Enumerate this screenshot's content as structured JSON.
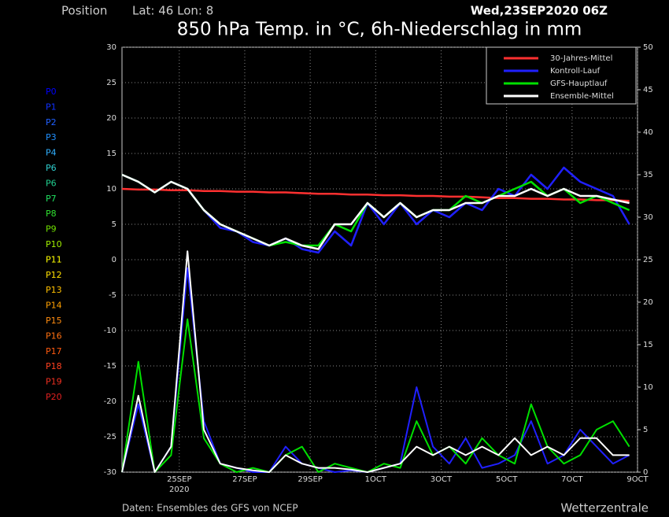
{
  "chart_data": {
    "type": "line",
    "position_label": "Position",
    "position": "Lat: 46 Lon: 8",
    "run": "Wed,23SEP2020 06Z",
    "title": "850 hPa Temp. in °C, 6h-Niederschlag in mm",
    "source": "Daten: Ensembles des GFS von NCEP",
    "brand": "Wetterzentrale",
    "x_year": "2020",
    "grid": true,
    "legend": "top-right",
    "x": [
      0,
      2,
      4,
      6,
      8,
      10,
      12,
      14,
      16,
      18,
      20,
      22,
      24,
      26,
      28,
      30,
      32,
      34,
      36,
      38,
      40,
      42,
      44,
      46,
      48,
      50,
      52,
      54,
      56,
      58,
      60,
      62
    ],
    "xlim": [
      0,
      63
    ],
    "xticks": [
      {
        "value": 7,
        "label": "25SEP"
      },
      {
        "value": 15,
        "label": "27SEP"
      },
      {
        "value": 23,
        "label": "29SEP"
      },
      {
        "value": 31,
        "label": "1OCT"
      },
      {
        "value": 39,
        "label": "3OCT"
      },
      {
        "value": 47,
        "label": "5OCT"
      },
      {
        "value": 55,
        "label": "7OCT"
      },
      {
        "value": 63,
        "label": "9OCT"
      }
    ],
    "ylim": [
      -30,
      30
    ],
    "yticks": [
      -30,
      -25,
      -20,
      -15,
      -10,
      -5,
      0,
      5,
      10,
      15,
      20,
      25,
      30
    ],
    "y2lim": [
      0,
      50
    ],
    "y2ticks": [
      0,
      5,
      10,
      15,
      20,
      25,
      30,
      35,
      40,
      45,
      50
    ],
    "series": [
      {
        "name": "30-Jahres-Mittel",
        "color": "#ff3030",
        "values": [
          10,
          9.9,
          9.9,
          9.8,
          9.8,
          9.7,
          9.7,
          9.6,
          9.6,
          9.5,
          9.5,
          9.4,
          9.3,
          9.3,
          9.2,
          9.2,
          9.1,
          9.1,
          9,
          9,
          8.9,
          8.9,
          8.8,
          8.7,
          8.7,
          8.6,
          8.6,
          8.5,
          8.5,
          8.4,
          8.4,
          8.3
        ]
      },
      {
        "name": "Kontroll-Lauf",
        "color": "#2020ff",
        "values": [
          12,
          11,
          9.5,
          11,
          10,
          7,
          4.5,
          4,
          2.5,
          2,
          3,
          1.5,
          1,
          4,
          2,
          8,
          5,
          8,
          5,
          7,
          6,
          8,
          7,
          10,
          9,
          12,
          10,
          13,
          11,
          10,
          9,
          5
        ],
        "precip": [
          0,
          8,
          0,
          3,
          24,
          6,
          1,
          0.5,
          0,
          0,
          3,
          1,
          0.5,
          0,
          0.2,
          0,
          0.5,
          1,
          10,
          3,
          1,
          4,
          0.5,
          1,
          2,
          6,
          1,
          2,
          5,
          3,
          1,
          2
        ]
      },
      {
        "name": "GFS-Hauptlauf",
        "color": "#00e000",
        "values": [
          12,
          11,
          9.5,
          11,
          10,
          7,
          5,
          4,
          3,
          2,
          2.5,
          2,
          2,
          5,
          4,
          8,
          6,
          8,
          6,
          7,
          7,
          9,
          8,
          9,
          10,
          11,
          9,
          10,
          8,
          9,
          8,
          7
        ],
        "precip": [
          0,
          13,
          0,
          2,
          18,
          4,
          1,
          0,
          0.5,
          0,
          2,
          3,
          0,
          1,
          0.5,
          0,
          1,
          0.5,
          6,
          2,
          3,
          1,
          4,
          2,
          1,
          8,
          3,
          1,
          2,
          5,
          6,
          3
        ]
      },
      {
        "name": "Ensemble-Mittel",
        "color": "#ffffff",
        "values": [
          12,
          11,
          9.5,
          11,
          10,
          7,
          5,
          4,
          3,
          2,
          3,
          2,
          1.5,
          5,
          5,
          8,
          6,
          8,
          6,
          7,
          7,
          8,
          8,
          9,
          9,
          10,
          9,
          10,
          9,
          9,
          8.5,
          8
        ],
        "precip": [
          0,
          9,
          0,
          3,
          26,
          5,
          1,
          0.5,
          0.2,
          0,
          2,
          1,
          0.5,
          0.5,
          0.3,
          0,
          0.5,
          1,
          3,
          2,
          3,
          2,
          3,
          2,
          4,
          2,
          3,
          2,
          4,
          4,
          2,
          2
        ]
      }
    ],
    "members": [
      {
        "name": "P0",
        "color": "#0000ff"
      },
      {
        "name": "P1",
        "color": "#1030ff"
      },
      {
        "name": "P2",
        "color": "#2060ff"
      },
      {
        "name": "P3",
        "color": "#2090ff"
      },
      {
        "name": "P4",
        "color": "#30b0ff"
      },
      {
        "name": "P6",
        "color": "#30d0d0"
      },
      {
        "name": "P6",
        "color": "#20d090"
      },
      {
        "name": "P7",
        "color": "#20e060"
      },
      {
        "name": "P8",
        "color": "#30e030"
      },
      {
        "name": "P9",
        "color": "#70e000"
      },
      {
        "name": "P10",
        "color": "#a0f000"
      },
      {
        "name": "P11",
        "color": "#ffff00"
      },
      {
        "name": "P12",
        "color": "#ffe000"
      },
      {
        "name": "P13",
        "color": "#ffc000"
      },
      {
        "name": "P14",
        "color": "#ffa000"
      },
      {
        "name": "P15",
        "color": "#ff8c10"
      },
      {
        "name": "P16",
        "color": "#ff7010"
      },
      {
        "name": "P17",
        "color": "#ff5a10"
      },
      {
        "name": "P18",
        "color": "#ff4020"
      },
      {
        "name": "P19",
        "color": "#f03020"
      },
      {
        "name": "P20",
        "color": "#e02020"
      }
    ]
  }
}
